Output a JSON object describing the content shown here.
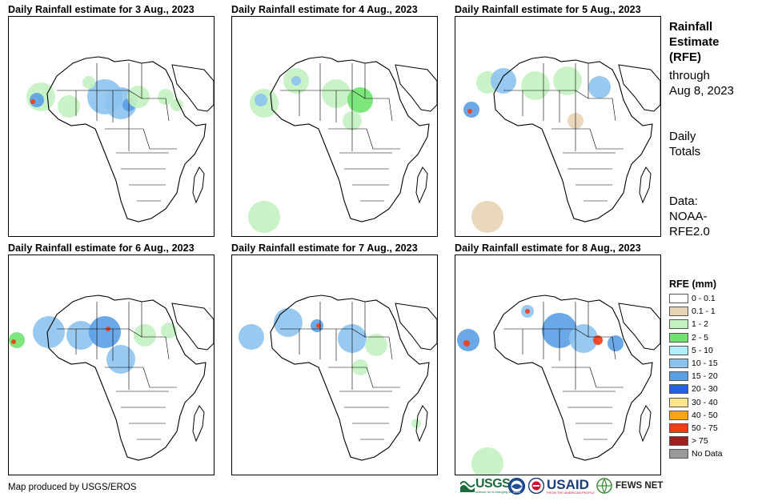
{
  "panels": [
    {
      "title": "Daily Rainfall estimate for 3 Aug., 2023"
    },
    {
      "title": "Daily Rainfall estimate for 4 Aug., 2023"
    },
    {
      "title": "Daily Rainfall estimate for 5 Aug., 2023"
    },
    {
      "title": "Daily Rainfall estimate for 6 Aug., 2023"
    },
    {
      "title": "Daily Rainfall estimate for 7 Aug., 2023"
    },
    {
      "title": "Daily Rainfall estimate for 8 Aug., 2023"
    }
  ],
  "sidebar": {
    "title_lines": [
      "Rainfall",
      "Estimate",
      "(RFE)"
    ],
    "through_lines": [
      "through",
      "Aug 8, 2023"
    ],
    "totals_lines": [
      "Daily",
      "Totals"
    ],
    "data_lines": [
      "Data:",
      "NOAA-",
      "RFE2.0"
    ]
  },
  "legend": {
    "title": "RFE (mm)",
    "items": [
      {
        "label": "0 - 0.1",
        "color": "#ffffff"
      },
      {
        "label": "0.1 - 1",
        "color": "#e9d3b5"
      },
      {
        "label": "1 - 2",
        "color": "#c3f2c0"
      },
      {
        "label": "2 - 5",
        "color": "#6fe36f"
      },
      {
        "label": "5 - 10",
        "color": "#b2eef7"
      },
      {
        "label": "10 - 15",
        "color": "#8cc3ef"
      },
      {
        "label": "15 - 20",
        "color": "#5a9ee6"
      },
      {
        "label": "20 - 30",
        "color": "#2461de"
      },
      {
        "label": "30 - 40",
        "color": "#fde58a"
      },
      {
        "label": "40 - 50",
        "color": "#fba316"
      },
      {
        "label": "50 - 75",
        "color": "#f53b12"
      },
      {
        "label": "> 75",
        "color": "#a01e1e"
      },
      {
        "label": "No Data",
        "color": "#9a9a9a"
      }
    ]
  },
  "footer": {
    "credit": "Map produced by USGS/EROS",
    "logos": {
      "usgs": "USGS",
      "usgs_tagline": "science for a changing world",
      "noaa": "NOAA",
      "usaid": "USAID",
      "usaid_tagline": "FROM THE AMERICAN PEOPLE",
      "fews": "FEWS NET"
    }
  }
}
